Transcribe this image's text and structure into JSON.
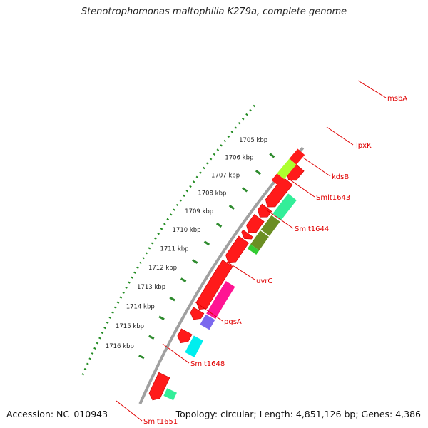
{
  "header": {
    "title": "Stenotrophomonas maltophilia K279a, complete genome"
  },
  "footer": {
    "accession": "Accession: NC_010943",
    "summary": "Topology: circular; Length: 4,851,126 bp; Genes: 4,386"
  },
  "scale": {
    "unit": "kbp",
    "ticks": [
      {
        "kbp": 1705,
        "label": "1705 kbp"
      },
      {
        "kbp": 1706,
        "label": "1706 kbp"
      },
      {
        "kbp": 1707,
        "label": "1707 kbp"
      },
      {
        "kbp": 1708,
        "label": "1708 kbp"
      },
      {
        "kbp": 1709,
        "label": "1709 kbp"
      },
      {
        "kbp": 1710,
        "label": "1710 kbp"
      },
      {
        "kbp": 1711,
        "label": "1711 kbp"
      },
      {
        "kbp": 1712,
        "label": "1712 kbp"
      },
      {
        "kbp": 1713,
        "label": "1713 kbp"
      },
      {
        "kbp": 1714,
        "label": "1714 kbp"
      },
      {
        "kbp": 1715,
        "label": "1715 kbp"
      },
      {
        "kbp": 1716,
        "label": "1716 kbp"
      }
    ]
  },
  "colors": {
    "gene_red": "#ff1a1a",
    "gene_red_dark": "#c80000",
    "backbone": "#a0a0a0",
    "tick": "#2e8b2e",
    "dot": "#228b22",
    "label_red": "#e00000",
    "leader": "#e00000"
  },
  "genes": [
    {
      "name": "msbA",
      "feature": "cds",
      "strand": "inner",
      "start": 1705.9,
      "end": 1707.1,
      "color": "#33ee99"
    },
    {
      "name": "lpxK",
      "feature": "cds",
      "strand": "inner",
      "start": 1707.2,
      "end": 1708.05,
      "color": "#6b8e23"
    },
    {
      "name": "kdsB",
      "feature": "cds",
      "strand": "inner",
      "start": 1708.1,
      "end": 1708.9,
      "color": "#6b8e23"
    },
    {
      "name": "Smlt1643",
      "feature": "cds",
      "strand": "inner",
      "start": 1708.9,
      "end": 1709.15,
      "color": "#33cc33"
    },
    {
      "name": "uvrC",
      "feature": "cds",
      "strand": "inner",
      "start": 1711.0,
      "end": 1712.8,
      "color": "#ff1493"
    },
    {
      "name": "pgsA",
      "feature": "cds",
      "strand": "inner",
      "start": 1712.85,
      "end": 1713.4,
      "color": "#7b68ee"
    },
    {
      "name": "Smlt1648",
      "feature": "cds",
      "strand": "inner",
      "start": 1714.0,
      "end": 1714.9,
      "color": "#00eeee"
    },
    {
      "name": "Smlt1651",
      "feature": "cds",
      "strand": "inner",
      "start": 1716.8,
      "end": 1717.2,
      "color": "#33ee99"
    }
  ],
  "labels": [
    {
      "text": "msbA",
      "gene": "msbA"
    },
    {
      "text": "lpxK",
      "gene": "lpxK"
    },
    {
      "text": "kdsB",
      "gene": "kdsB"
    },
    {
      "text": "Smlt1643",
      "gene": "Smlt1643"
    },
    {
      "text": "Smlt1644",
      "gene": "Smlt1644"
    },
    {
      "text": "uvrC",
      "gene": "uvrC"
    },
    {
      "text": "pgsA",
      "gene": "pgsA"
    },
    {
      "text": "Smlt1648",
      "gene": "Smlt1648"
    },
    {
      "text": "Smlt1651",
      "gene": "Smlt1651"
    }
  ],
  "outer_track": [
    {
      "start": 1704.0,
      "end": 1704.6,
      "color": "#ff1a1a"
    },
    {
      "start": 1704.6,
      "end": 1705.5,
      "color": "#adff2f"
    },
    {
      "start": 1705.5,
      "end": 1705.9,
      "color": "#ff1a1a"
    }
  ],
  "rna_track": [
    {
      "start": 1704.6,
      "end": 1705.4
    },
    {
      "start": 1705.45,
      "end": 1707.0
    },
    {
      "start": 1707.05,
      "end": 1707.6
    },
    {
      "start": 1707.65,
      "end": 1708.5
    },
    {
      "start": 1708.55,
      "end": 1708.85
    },
    {
      "start": 1708.9,
      "end": 1710.2
    },
    {
      "start": 1710.25,
      "end": 1712.8
    },
    {
      "start": 1712.85,
      "end": 1713.35
    },
    {
      "start": 1714.0,
      "end": 1714.6
    },
    {
      "start": 1716.3,
      "end": 1717.6
    }
  ]
}
